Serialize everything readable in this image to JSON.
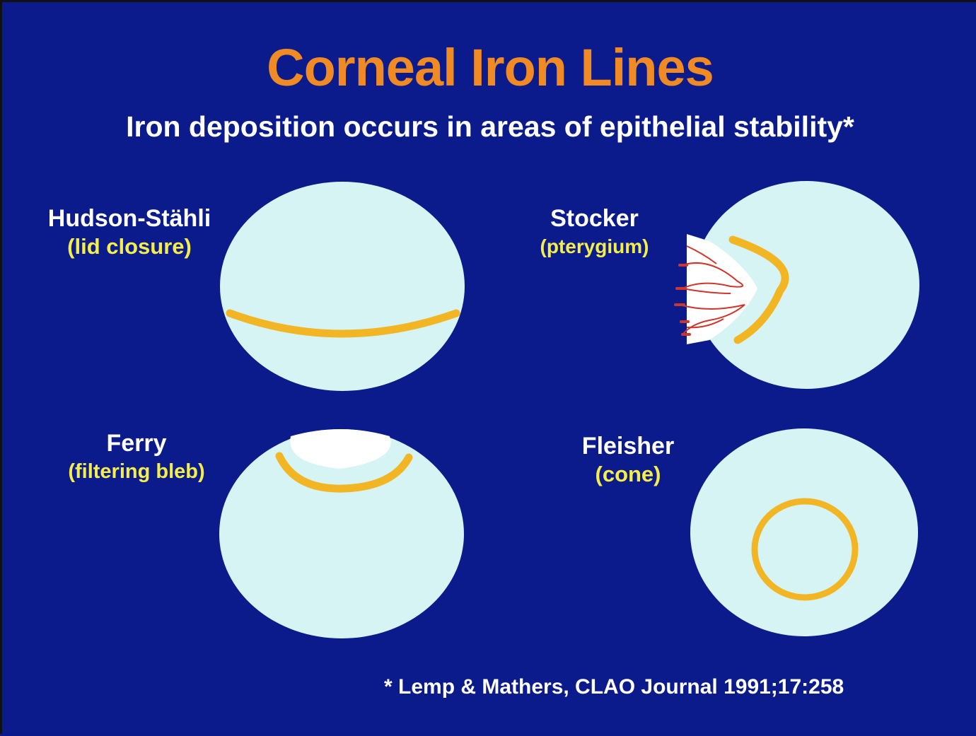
{
  "slide": {
    "title": "Corneal Iron Lines",
    "subtitle": "Iron deposition occurs in areas of epithelial stability*",
    "footnote": "* Lemp & Mathers, CLAO Journal 1991;17:258"
  },
  "panels": [
    {
      "name": "Hudson-Stähli",
      "cause": "(lid closure)"
    },
    {
      "name": "Stocker",
      "cause": "(pterygium)"
    },
    {
      "name": "Ferry",
      "cause": "(filtering bleb)"
    },
    {
      "name": "Fleisher",
      "cause": "(cone)"
    }
  ],
  "colors": {
    "background": "#0b1b8c",
    "title": "#f08a24",
    "cornea": "#d7f4f4",
    "iron_line": "#f2b524",
    "cause_text": "#f5ee4a",
    "pterygium_vessels": "#d0352a"
  }
}
